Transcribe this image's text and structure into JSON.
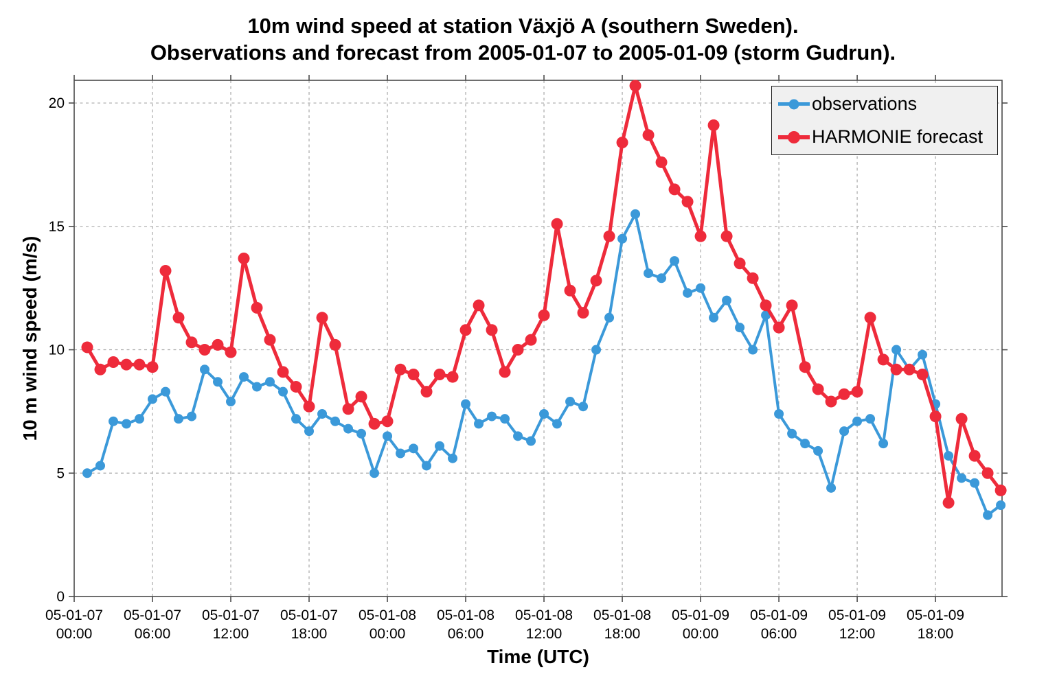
{
  "chart_data": {
    "type": "line",
    "title_line1": "10m wind speed at station Växjö A (southern Sweden).",
    "title_line2": "Observations and forecast from 2005-01-07 to 2005-01-09 (storm Gudrun).",
    "xlabel": "Time (UTC)",
    "ylabel": "10 m wind speed (m/s)",
    "grid": true,
    "legend_position": "top-right",
    "ylim": [
      0,
      20.92
    ],
    "yticks": [
      {
        "value": 0,
        "label": "0"
      },
      {
        "value": 5,
        "label": "5"
      },
      {
        "value": 10,
        "label": "10"
      },
      {
        "value": 15,
        "label": "15"
      },
      {
        "value": 20,
        "label": "20"
      }
    ],
    "xlim_hours": [
      0,
      71.1
    ],
    "x_start_label": "2005-01-07 01:00",
    "x_step_hours": 1,
    "x_first_point_hour": 1,
    "xticks": [
      {
        "hour": 0,
        "date": "05-01-07",
        "time": "00:00"
      },
      {
        "hour": 6,
        "date": "05-01-07",
        "time": "06:00"
      },
      {
        "hour": 12,
        "date": "05-01-07",
        "time": "12:00"
      },
      {
        "hour": 18,
        "date": "05-01-07",
        "time": "18:00"
      },
      {
        "hour": 24,
        "date": "05-01-08",
        "time": "00:00"
      },
      {
        "hour": 30,
        "date": "05-01-08",
        "time": "06:00"
      },
      {
        "hour": 36,
        "date": "05-01-08",
        "time": "12:00"
      },
      {
        "hour": 42,
        "date": "05-01-08",
        "time": "18:00"
      },
      {
        "hour": 48,
        "date": "05-01-09",
        "time": "00:00"
      },
      {
        "hour": 54,
        "date": "05-01-09",
        "time": "06:00"
      },
      {
        "hour": 60,
        "date": "05-01-09",
        "time": "12:00"
      },
      {
        "hour": 66,
        "date": "05-01-09",
        "time": "18:00"
      }
    ],
    "series": [
      {
        "name": "observations",
        "color": "#3b99d9",
        "values": [
          5.0,
          5.3,
          7.1,
          7.0,
          7.2,
          8.0,
          8.3,
          7.2,
          7.3,
          9.2,
          8.7,
          7.9,
          8.9,
          8.5,
          8.7,
          8.3,
          7.2,
          6.7,
          7.4,
          7.1,
          6.8,
          6.6,
          5.0,
          6.5,
          5.8,
          6.0,
          5.3,
          6.1,
          5.6,
          7.8,
          7.0,
          7.3,
          7.2,
          6.5,
          6.3,
          7.4,
          7.0,
          7.9,
          7.7,
          10.0,
          11.3,
          14.5,
          15.5,
          13.1,
          12.9,
          13.6,
          12.3,
          12.5,
          11.3,
          12.0,
          10.9,
          10.0,
          11.4,
          7.4,
          6.6,
          6.2,
          5.9,
          4.4,
          6.7,
          7.1,
          7.2,
          6.2,
          10.0,
          9.2,
          9.8,
          7.8,
          5.7,
          4.8,
          4.6,
          3.3,
          3.7
        ]
      },
      {
        "name": "HARMONIE forecast",
        "color": "#ee2b3b",
        "values": [
          10.1,
          9.2,
          9.5,
          9.4,
          9.4,
          9.3,
          13.2,
          11.3,
          10.3,
          10.0,
          10.2,
          9.9,
          13.7,
          11.7,
          10.4,
          9.1,
          8.5,
          7.7,
          11.3,
          10.2,
          7.6,
          8.1,
          7.0,
          7.1,
          9.2,
          9.0,
          8.3,
          9.0,
          8.9,
          10.8,
          11.8,
          10.8,
          9.1,
          10.0,
          10.4,
          11.4,
          15.1,
          12.4,
          11.5,
          12.8,
          14.6,
          18.4,
          20.7,
          18.7,
          17.6,
          16.5,
          16.0,
          14.6,
          19.1,
          14.6,
          13.5,
          12.9,
          11.8,
          10.9,
          11.8,
          9.3,
          8.4,
          7.9,
          8.2,
          8.3,
          11.3,
          9.6,
          9.2,
          9.2,
          9.0,
          7.3,
          3.8,
          7.2,
          5.7,
          5.0,
          4.3
        ]
      }
    ],
    "style": {
      "grid_color": "#a8a8a8",
      "spine_color": "#4a4a4a",
      "legend_bg": "#f0f0f0",
      "text_color": "#000000"
    }
  }
}
